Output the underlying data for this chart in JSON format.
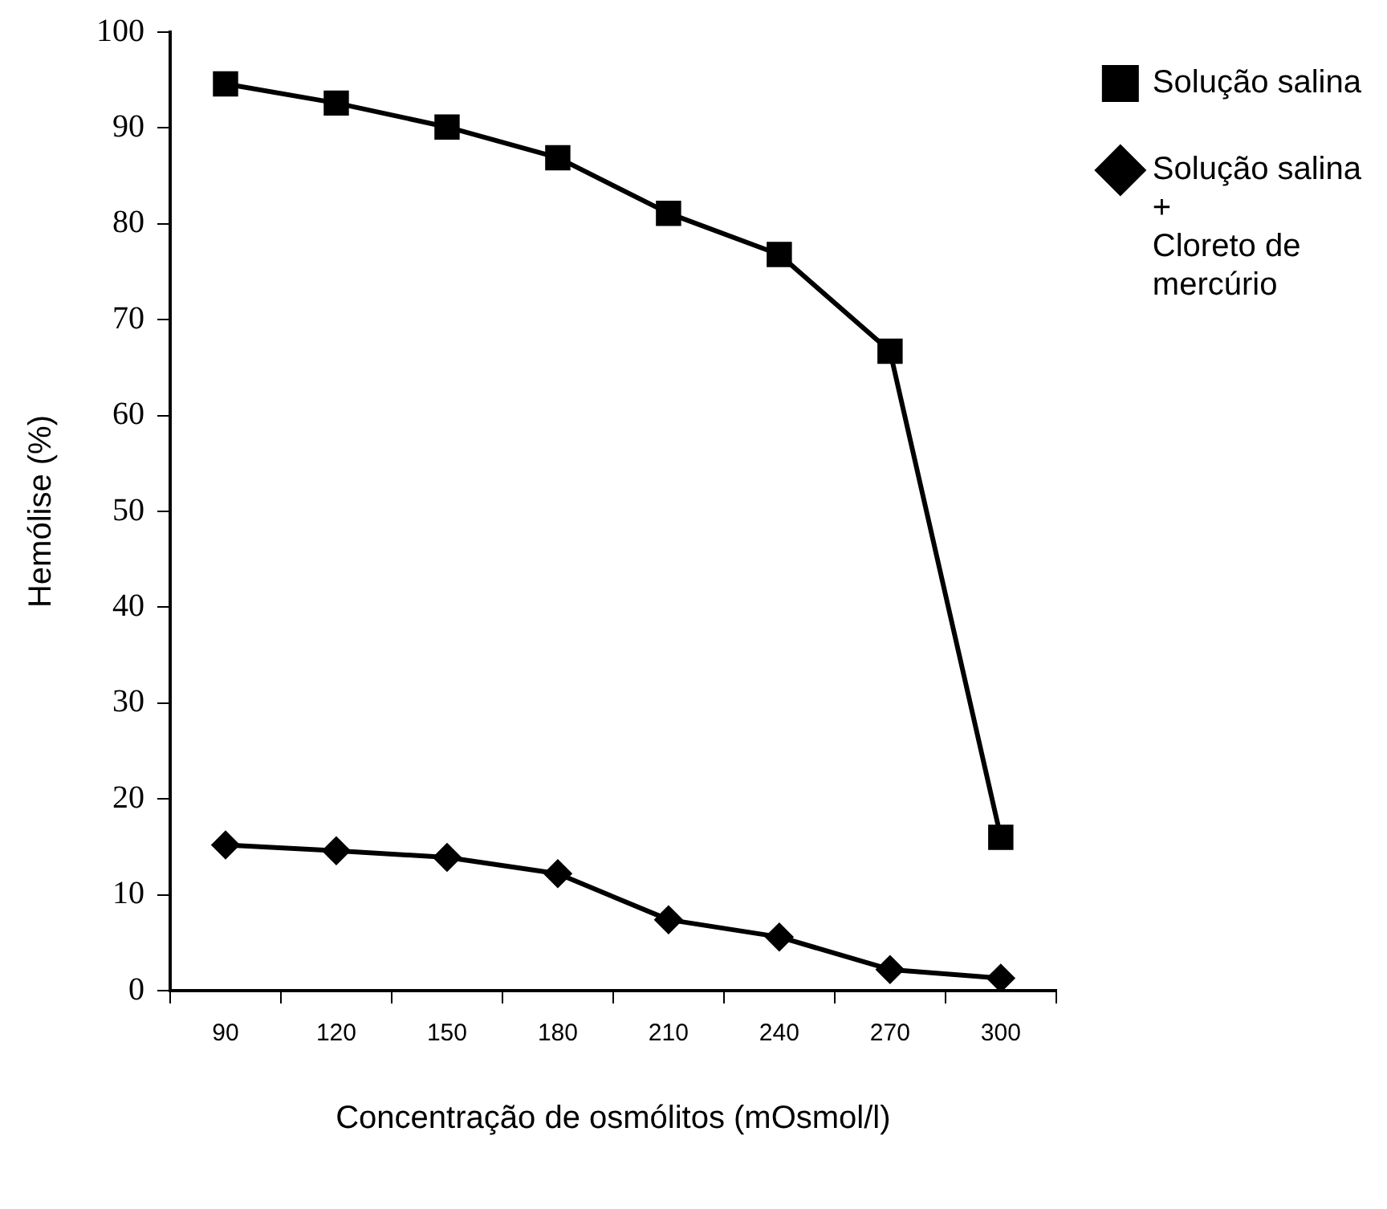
{
  "chart_data": {
    "type": "line",
    "xlabel": "Concentração de osmólitos (mOsmol/l)",
    "ylabel": "Hemólise (%)",
    "categories": [
      "90",
      "120",
      "150",
      "180",
      "210",
      "240",
      "270",
      "300"
    ],
    "series": [
      {
        "name": "Solução salina",
        "color": "#000000",
        "marker": "square",
        "values": [
          94.6,
          92.6,
          90.1,
          86.9,
          81.1,
          76.8,
          66.7,
          16
        ]
      },
      {
        "name": "Solução salina\n+\nCloreto de\nmercúrio",
        "color": "#000000",
        "marker": "diamond",
        "values": [
          15.2,
          14.6,
          13.9,
          12.2,
          7.4,
          5.6,
          2.2,
          1.3
        ]
      }
    ],
    "ylim": [
      0,
      100
    ],
    "yticks": [
      0,
      10,
      20,
      30,
      40,
      50,
      60,
      70,
      80,
      90,
      100
    ],
    "grid": false,
    "legend": "top right",
    "line_style": "solid"
  }
}
